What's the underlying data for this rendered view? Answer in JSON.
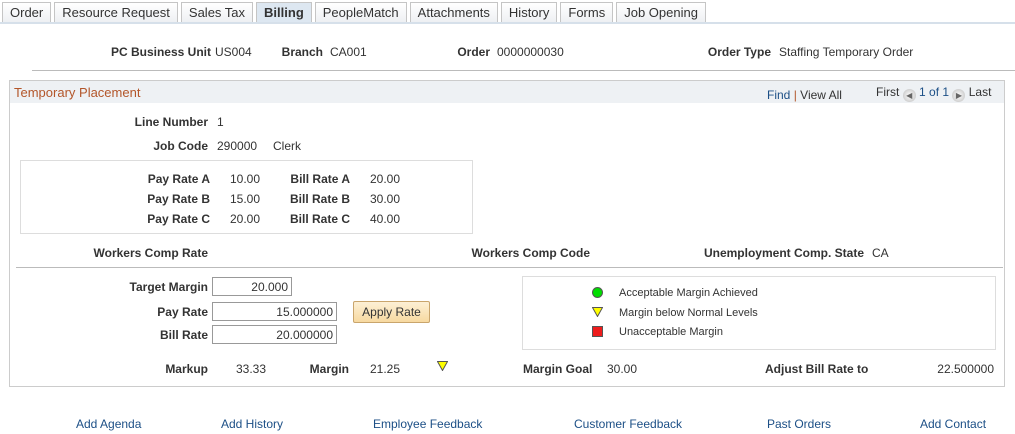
{
  "tabs": [
    {
      "label": "Order"
    },
    {
      "label": "Resource Request"
    },
    {
      "label": "Sales Tax"
    },
    {
      "label": "Billing",
      "active": true
    },
    {
      "label": "PeopleMatch"
    },
    {
      "label": "Attachments"
    },
    {
      "label": "History"
    },
    {
      "label": "Forms"
    },
    {
      "label": "Job Opening"
    }
  ],
  "header": {
    "bu_label": "PC Business Unit",
    "bu": "US004",
    "branch_label": "Branch",
    "branch": "CA001",
    "order_label": "Order",
    "order": "0000000030",
    "type_label": "Order Type",
    "type": "Staffing Temporary Order"
  },
  "panel": {
    "title": "Temporary Placement",
    "find": "Find",
    "sep": "|",
    "view_all": "View All",
    "first": "First",
    "page": "1 of 1",
    "last": "Last"
  },
  "line": {
    "label": "Line Number",
    "value": "1"
  },
  "job": {
    "label": "Job Code",
    "code": "290000",
    "desc": "Clerk"
  },
  "rates": [
    {
      "pay_label": "Pay Rate A",
      "pay": "10.00",
      "bill_label": "Bill Rate A",
      "bill": "20.00"
    },
    {
      "pay_label": "Pay Rate B",
      "pay": "15.00",
      "bill_label": "Bill Rate B",
      "bill": "30.00"
    },
    {
      "pay_label": "Pay Rate C",
      "pay": "20.00",
      "bill_label": "Bill Rate C",
      "bill": "40.00"
    }
  ],
  "workers": {
    "rate_label": "Workers Comp Rate",
    "code_label": "Workers Comp Code",
    "unemp_label": "Unemployment Comp. State",
    "unemp": "CA"
  },
  "calc": {
    "target_label": "Target Margin",
    "target": "20.000",
    "pay_label": "Pay Rate",
    "pay": "15.000000",
    "bill_label": "Bill Rate",
    "bill": "20.000000",
    "apply": "Apply Rate"
  },
  "legend": [
    {
      "icon": "green-circle",
      "color": "#00dd00",
      "label": "Acceptable Margin Achieved"
    },
    {
      "icon": "yellow-triangle",
      "color": "#ffff00",
      "label": "Margin below Normal Levels"
    },
    {
      "icon": "red-square",
      "color": "#ee1c1c",
      "label": "Unacceptable Margin"
    }
  ],
  "summary": {
    "markup_label": "Markup",
    "markup": "33.33",
    "margin_label": "Margin",
    "margin": "21.25",
    "margin_status": "yellow-triangle",
    "goal_label": "Margin Goal",
    "goal": "30.00",
    "adjust_label": "Adjust Bill Rate to",
    "adjust": "22.500000"
  },
  "links": [
    "Add Agenda",
    "Add History",
    "Employee Feedback",
    "Customer Feedback",
    "Past Orders",
    "Add Contact"
  ]
}
